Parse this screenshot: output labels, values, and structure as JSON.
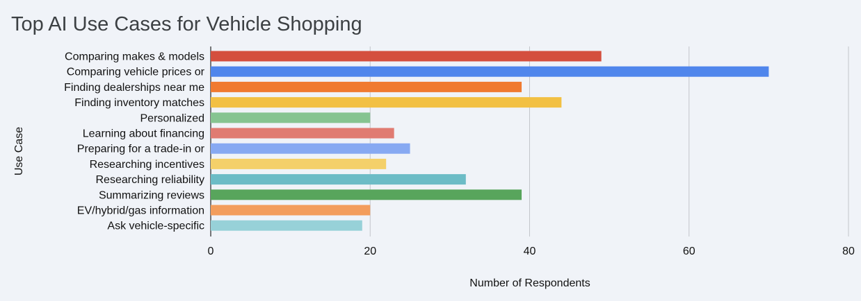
{
  "chart_data": {
    "type": "bar",
    "orientation": "horizontal",
    "title": "Top AI Use Cases for Vehicle Shopping",
    "xlabel": "Number of Respondents",
    "ylabel": "Use Case",
    "xlim": [
      0,
      80
    ],
    "xticks": [
      0,
      20,
      40,
      60,
      80
    ],
    "grid": true,
    "legend": "none",
    "categories": [
      "Comparing makes & models",
      "Comparing vehicle prices or",
      "Finding dealerships near me",
      "Finding inventory matches",
      "Personalized",
      "Learning about financing",
      "Preparing for a trade-in or",
      "Researching incentives",
      "Researching reliability",
      "Summarizing reviews",
      "EV/hybrid/gas information",
      "Ask vehicle-specific"
    ],
    "values": [
      49,
      70,
      39,
      44,
      20,
      23,
      25,
      22,
      32,
      39,
      20,
      19
    ],
    "colors": [
      "#d44f3e",
      "#5086ec",
      "#f07a30",
      "#f2c043",
      "#86c491",
      "#e07b72",
      "#87a9f2",
      "#f4d06a",
      "#6cbcc6",
      "#58a55c",
      "#f39d5c",
      "#97d1d8"
    ]
  }
}
